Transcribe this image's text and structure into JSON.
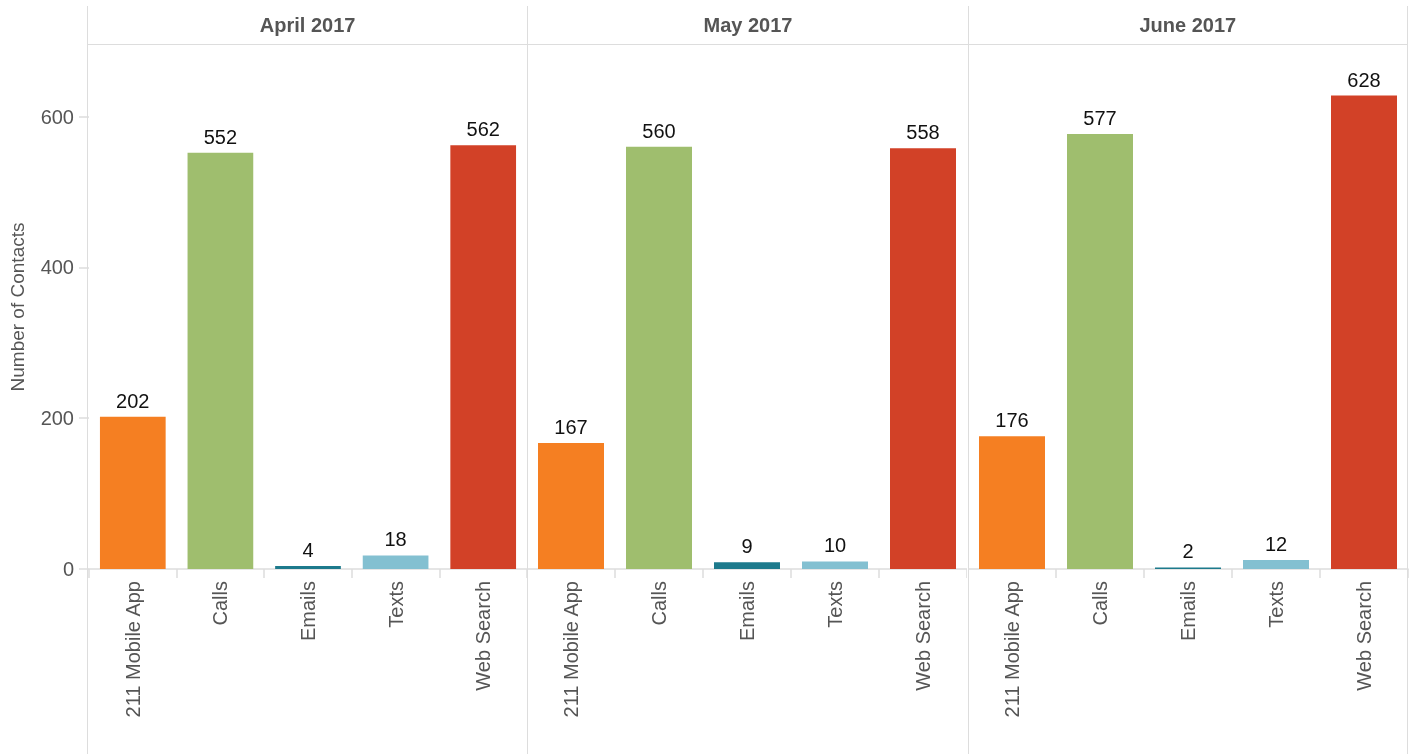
{
  "chart_data": [
    {
      "type": "bar",
      "title": "April 2017",
      "ylabel": "Number of Contacts",
      "categories": [
        "211 Mobile App",
        "Calls",
        "Emails",
        "Texts",
        "Web Search"
      ],
      "values": [
        202,
        552,
        4,
        18,
        562
      ],
      "colors": [
        "#f57f22",
        "#9fbe6e",
        "#1d7a8c",
        "#83c0d1",
        "#d24127"
      ],
      "ylim": [
        0,
        695
      ],
      "yticks": [
        0,
        200,
        400,
        600
      ],
      "data_labels": true,
      "grid": false
    },
    {
      "type": "bar",
      "title": "May 2017",
      "categories": [
        "211 Mobile App",
        "Calls",
        "Emails",
        "Texts",
        "Web Search"
      ],
      "values": [
        167,
        560,
        9,
        10,
        558
      ],
      "colors": [
        "#f57f22",
        "#9fbe6e",
        "#1d7a8c",
        "#83c0d1",
        "#d24127"
      ],
      "ylim": [
        0,
        695
      ],
      "yticks": [
        0,
        200,
        400,
        600
      ],
      "data_labels": true,
      "grid": false,
      "tick_labels": "x"
    },
    {
      "type": "bar",
      "title": "June 2017",
      "categories": [
        "211 Mobile App",
        "Calls",
        "Emails",
        "Texts",
        "Web Search"
      ],
      "values": [
        176,
        577,
        2,
        12,
        628
      ],
      "colors": [
        "#f57f22",
        "#9fbe6e",
        "#1d7a8c",
        "#83c0d1",
        "#d24127"
      ],
      "ylim": [
        0,
        695
      ],
      "yticks": [
        0,
        200,
        400,
        600
      ],
      "data_labels": true,
      "grid": false,
      "tick_labels": "x"
    }
  ]
}
